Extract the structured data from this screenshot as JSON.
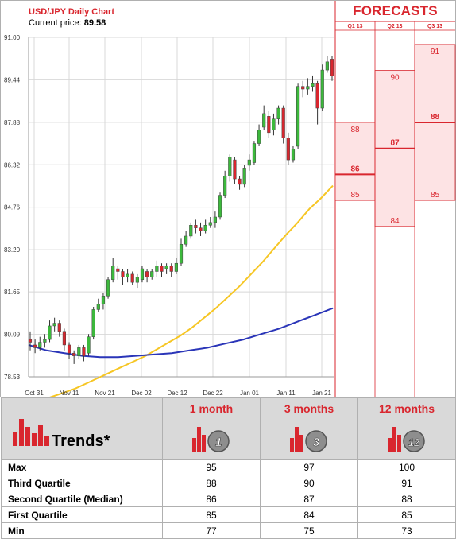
{
  "header": {
    "title": "USD/JPY Daily Chart",
    "price_label": "Current price:",
    "price_value": "89.58",
    "forecasts_title": "FORECASTS"
  },
  "colors": {
    "candle_up": "#3cb93c",
    "candle_down": "#d9262e",
    "ma_short": "#f6c624",
    "ma_long": "#2a35b8",
    "forecast_fill": "#fde3e4",
    "forecast_line": "#d9262e",
    "accent": "#d9262e"
  },
  "chart_data": {
    "type": "candlestick",
    "title": "USD/JPY Daily Chart",
    "ylim": [
      78.53,
      91.0
    ],
    "y_ticks": [
      "91.00",
      "89.44",
      "87.88",
      "86.32",
      "84.76",
      "83.20",
      "81.65",
      "80.09",
      "78.53"
    ],
    "x_ticks": [
      "Oct 31",
      "Nov 11",
      "Nov 21",
      "Dec 02",
      "Dec 12",
      "Dec 22",
      "Jan 01",
      "Jan 11",
      "Jan 21"
    ],
    "candles": [
      [
        79.9,
        79.8,
        80.2,
        79.5
      ],
      [
        79.7,
        79.6,
        79.9,
        79.4
      ],
      [
        79.6,
        79.8,
        80.0,
        79.5
      ],
      [
        79.8,
        79.9,
        80.1,
        79.6
      ],
      [
        79.9,
        80.4,
        80.6,
        79.8
      ],
      [
        80.4,
        80.5,
        80.7,
        80.2
      ],
      [
        80.5,
        80.2,
        80.6,
        80.0
      ],
      [
        80.2,
        79.7,
        80.3,
        79.5
      ],
      [
        79.7,
        79.4,
        79.8,
        79.2
      ],
      [
        79.4,
        79.3,
        79.5,
        79.0
      ],
      [
        79.3,
        79.6,
        79.7,
        79.2
      ],
      [
        79.6,
        79.3,
        79.7,
        79.1
      ],
      [
        79.4,
        80.0,
        80.1,
        79.3
      ],
      [
        80.0,
        81.0,
        81.1,
        79.9
      ],
      [
        81.0,
        81.2,
        81.4,
        80.9
      ],
      [
        81.2,
        81.5,
        81.6,
        81.0
      ],
      [
        81.5,
        82.1,
        82.2,
        81.4
      ],
      [
        82.1,
        82.6,
        82.9,
        82.0
      ],
      [
        82.5,
        82.4,
        82.6,
        82.1
      ],
      [
        82.4,
        82.2,
        82.5,
        81.9
      ],
      [
        82.2,
        82.3,
        82.5,
        82.0
      ],
      [
        82.3,
        82.0,
        82.4,
        81.9
      ],
      [
        82.0,
        82.2,
        82.3,
        81.8
      ],
      [
        82.1,
        82.5,
        82.6,
        82.0
      ],
      [
        82.4,
        82.2,
        82.5,
        82.0
      ],
      [
        82.2,
        82.4,
        82.5,
        82.1
      ],
      [
        82.4,
        82.6,
        82.8,
        82.2
      ],
      [
        82.6,
        82.4,
        82.7,
        82.2
      ],
      [
        82.5,
        82.6,
        82.7,
        82.3
      ],
      [
        82.6,
        82.4,
        82.7,
        82.2
      ],
      [
        82.4,
        82.7,
        82.9,
        82.3
      ],
      [
        82.7,
        83.4,
        83.6,
        82.6
      ],
      [
        83.4,
        83.7,
        83.9,
        83.3
      ],
      [
        83.7,
        84.1,
        84.2,
        83.6
      ],
      [
        84.1,
        84.0,
        84.3,
        83.8
      ],
      [
        84.0,
        83.9,
        84.2,
        83.7
      ],
      [
        83.9,
        84.1,
        84.3,
        83.8
      ],
      [
        84.1,
        84.2,
        84.4,
        84.0
      ],
      [
        84.2,
        84.4,
        84.6,
        84.0
      ],
      [
        84.4,
        85.2,
        85.3,
        84.3
      ],
      [
        85.2,
        85.9,
        86.1,
        85.1
      ],
      [
        85.9,
        86.6,
        86.7,
        85.7
      ],
      [
        86.5,
        85.8,
        86.6,
        85.6
      ],
      [
        85.8,
        85.6,
        85.9,
        85.4
      ],
      [
        85.6,
        86.2,
        86.3,
        85.5
      ],
      [
        86.3,
        86.5,
        86.7,
        86.1
      ],
      [
        86.4,
        87.1,
        87.2,
        86.3
      ],
      [
        87.1,
        87.6,
        87.8,
        87.0
      ],
      [
        87.7,
        88.2,
        88.5,
        87.6
      ],
      [
        88.1,
        87.5,
        88.3,
        87.3
      ],
      [
        87.6,
        88.0,
        88.2,
        87.4
      ],
      [
        88.0,
        88.4,
        88.5,
        87.8
      ],
      [
        88.4,
        87.3,
        88.5,
        87.1
      ],
      [
        87.3,
        86.5,
        87.5,
        86.3
      ],
      [
        86.5,
        86.9,
        87.0,
        86.4
      ],
      [
        87.0,
        89.2,
        89.3,
        86.9
      ],
      [
        89.2,
        89.1,
        89.4,
        88.8
      ],
      [
        89.1,
        89.2,
        89.5,
        88.9
      ],
      [
        89.2,
        89.3,
        89.6,
        89.0
      ],
      [
        89.3,
        88.4,
        89.4,
        87.8
      ],
      [
        88.4,
        89.8,
        90.0,
        88.3
      ],
      [
        89.8,
        90.1,
        90.3,
        89.7
      ],
      [
        90.2,
        89.58,
        90.3,
        89.4
      ]
    ],
    "ma_short_series": [
      77.5,
      77.65,
      77.8,
      77.95,
      78.1,
      78.3,
      78.5,
      78.7,
      78.9,
      79.1,
      79.3,
      79.55,
      79.8,
      80.05,
      80.35,
      80.7,
      81.05,
      81.45,
      81.85,
      82.3,
      82.75,
      83.25,
      83.75,
      84.2,
      84.7,
      85.1,
      85.55
    ],
    "ma_long_series": [
      79.7,
      79.5,
      79.4,
      79.3,
      79.25,
      79.25,
      79.3,
      79.35,
      79.4,
      79.5,
      79.6,
      79.75,
      79.9,
      80.1,
      80.3,
      80.55,
      80.8,
      81.05
    ],
    "forecast_columns": [
      {
        "label": "Q1 13",
        "high": 88,
        "median": 86,
        "low": 85
      },
      {
        "label": "Q2 13",
        "high": 90,
        "median": 87,
        "low": 84
      },
      {
        "label": "Q3 13",
        "high": 91,
        "median": 88,
        "low": 85
      }
    ],
    "forecast_scale": {
      "base": 88,
      "px_per_unit": 32.7,
      "base_y": 154
    }
  },
  "table": {
    "trends_label": "Trends*",
    "columns": [
      {
        "label": "1 month",
        "badge": "1"
      },
      {
        "label": "3 months",
        "badge": "3"
      },
      {
        "label": "12 months",
        "badge": "12"
      }
    ],
    "rows": [
      {
        "label": "Max",
        "values": [
          "95",
          "97",
          "100"
        ]
      },
      {
        "label": "Third Quartile",
        "values": [
          "88",
          "90",
          "91"
        ]
      },
      {
        "label": "Second Quartile (Median)",
        "values": [
          "86",
          "87",
          "88"
        ]
      },
      {
        "label": "First Quartile",
        "values": [
          "85",
          "84",
          "85"
        ]
      },
      {
        "label": "Min",
        "values": [
          "77",
          "75",
          "73"
        ]
      }
    ]
  }
}
